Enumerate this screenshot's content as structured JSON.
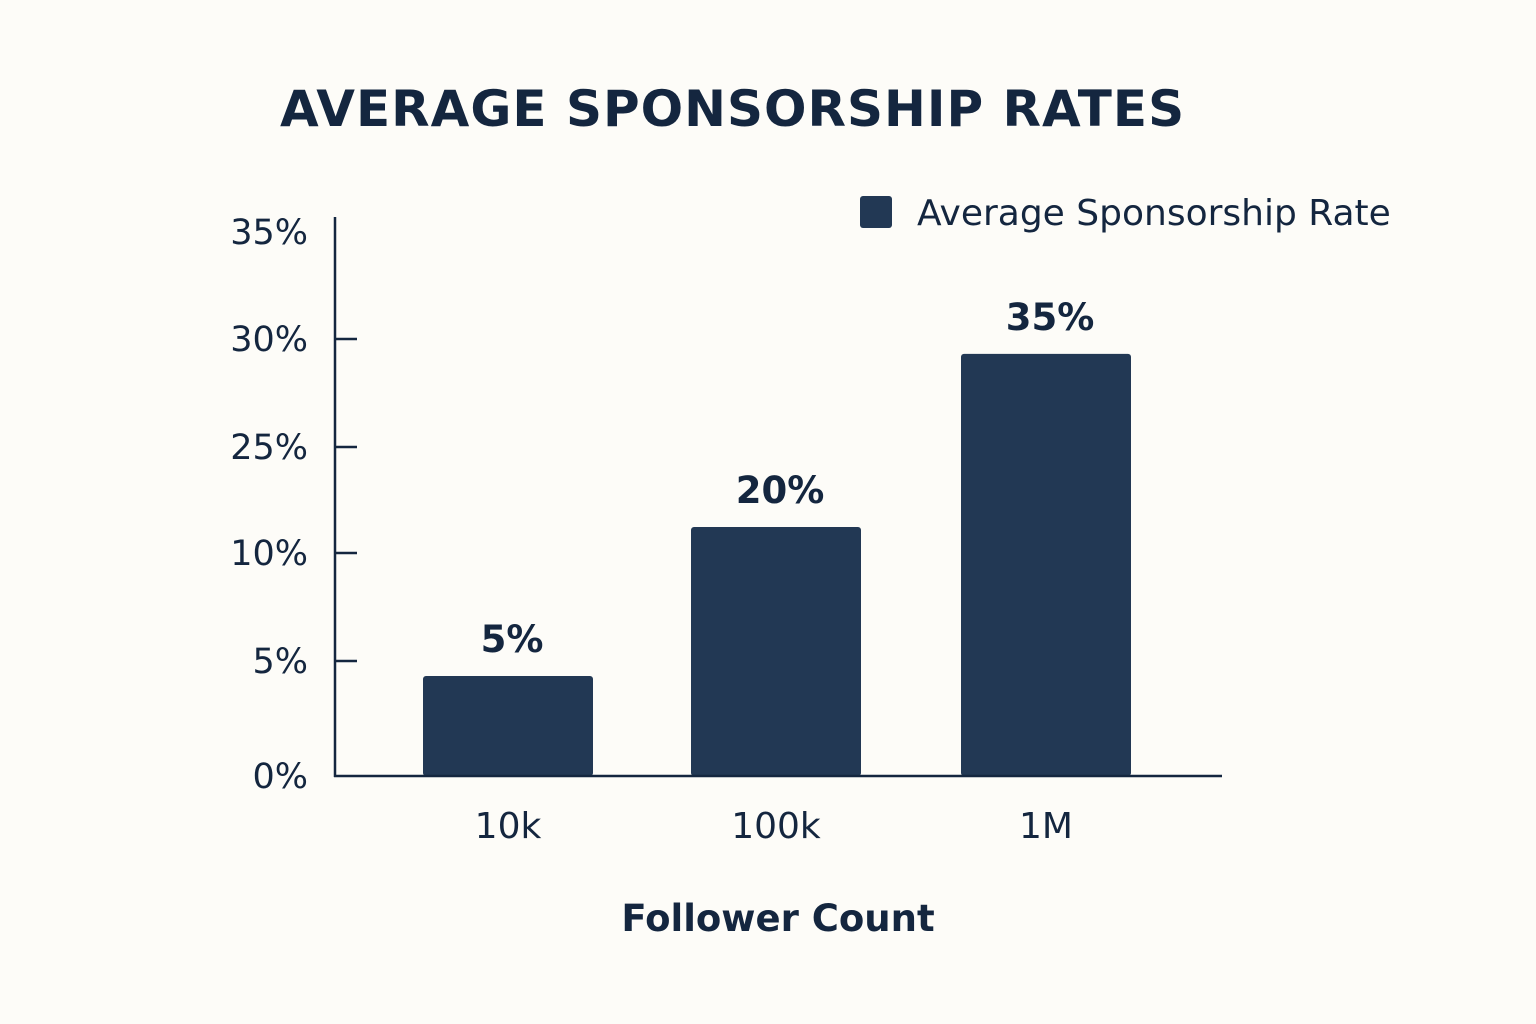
{
  "chart_data": {
    "type": "bar",
    "title": "AVERAGE SPONSORSHIP RATES",
    "xlabel": "Follower Count",
    "ylabel": "",
    "categories": [
      "10k",
      "100k",
      "1M"
    ],
    "series": [
      {
        "name": "Average Sponsorship Rate",
        "values": [
          5,
          20,
          35
        ],
        "labels": [
          "5%",
          "20%",
          "35%"
        ]
      }
    ],
    "yticks": [
      "0%",
      "5%",
      "10%",
      "25%",
      "30%",
      "35%"
    ],
    "grid": false,
    "legend": "top-right",
    "colors": {
      "bar": "#223854",
      "axis": "#14263f",
      "background": "#fdfcf8"
    }
  }
}
